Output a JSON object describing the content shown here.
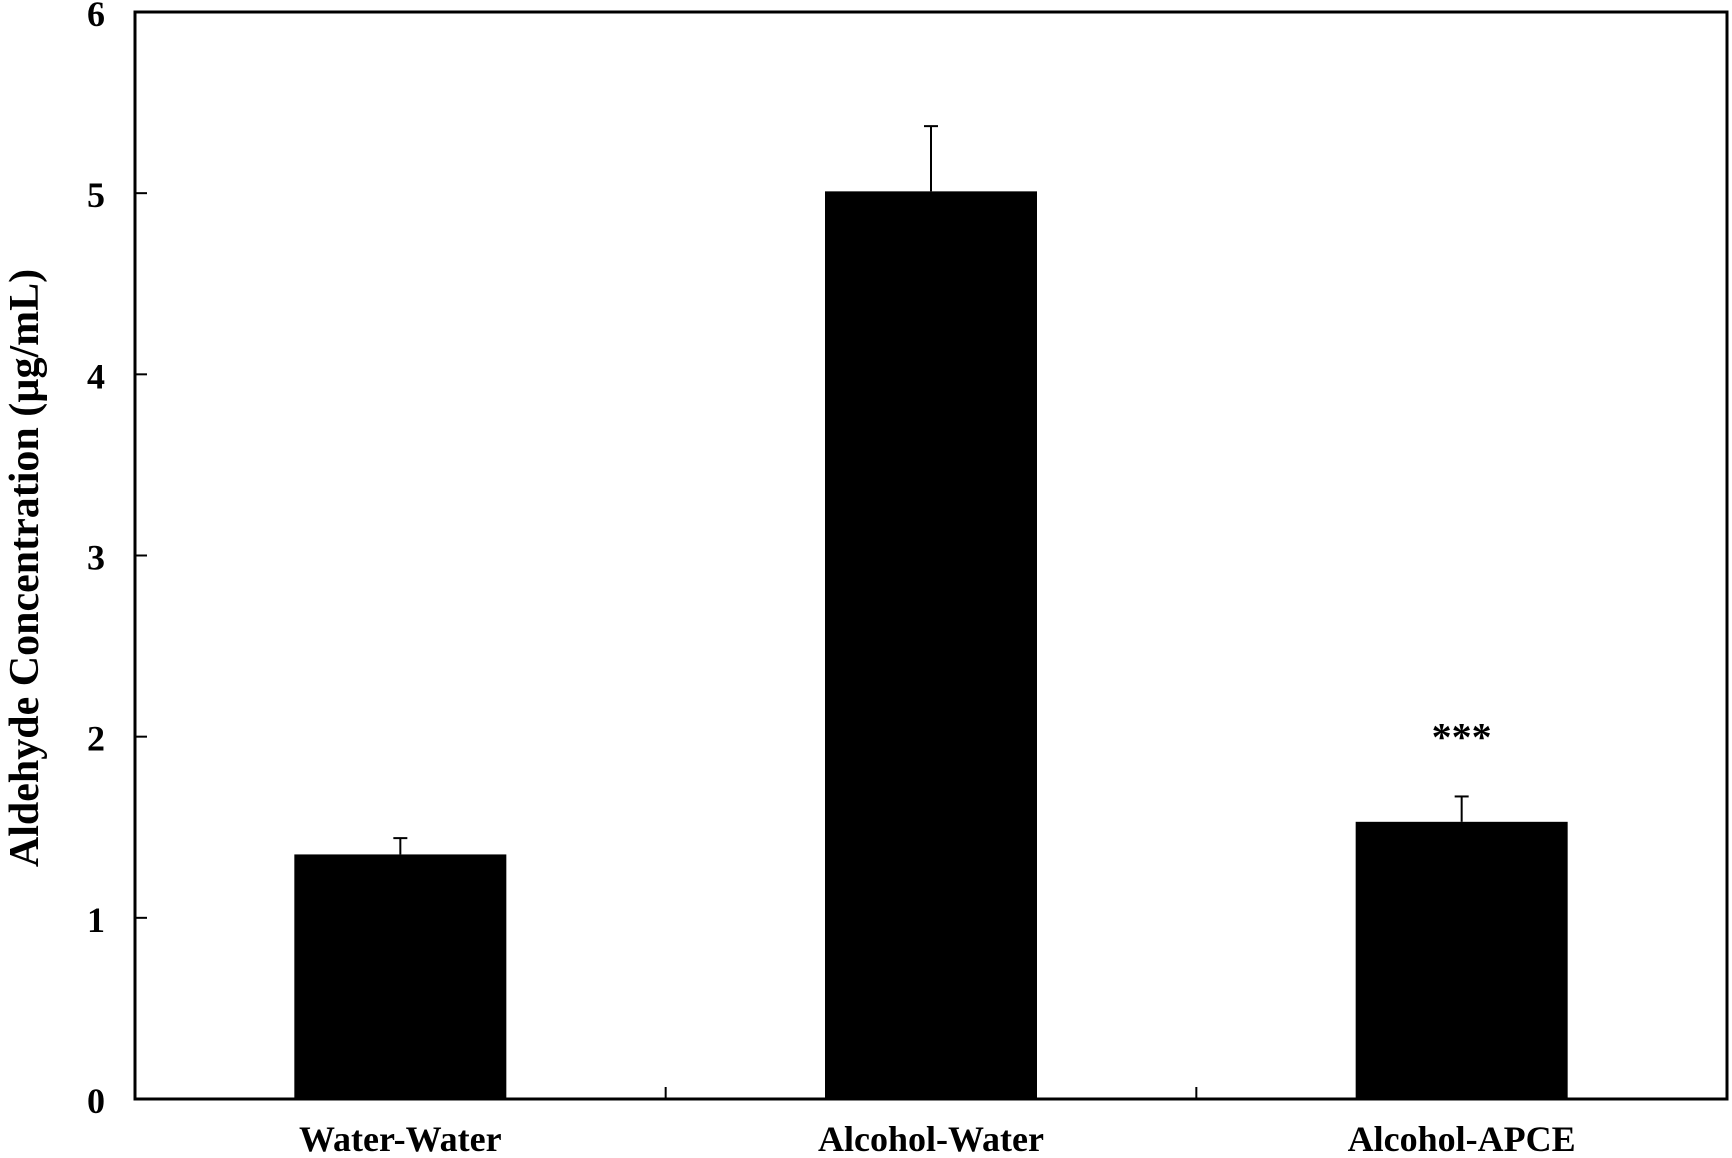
{
  "chart_data": {
    "type": "bar",
    "title": "",
    "xlabel": "",
    "ylabel": "Aldehyde Concentration  (µg/mL)",
    "categories": [
      "Water-Water",
      "Alcohol-Water",
      "Alcohol-APCE"
    ],
    "values": [
      1.35,
      5.01,
      1.53
    ],
    "errors": [
      0.09,
      0.36,
      0.14
    ],
    "annotations": [
      "",
      "",
      "***"
    ],
    "ylim": [
      0,
      6
    ],
    "yticks": [
      "0",
      "1",
      "2",
      "3",
      "4",
      "5",
      "6"
    ],
    "grid": false,
    "legend": "none",
    "bar_color": "#000000"
  }
}
